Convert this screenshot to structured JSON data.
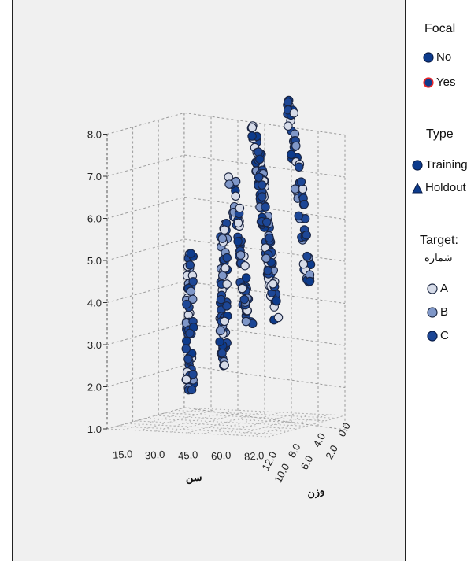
{
  "chart_data": {
    "type": "scatter",
    "title": "",
    "xlabel": "سن",
    "ylabel": "ق",
    "zlabel": "وزن",
    "x_ticks": [
      "15.0",
      "30.0",
      "45.0",
      "60.0",
      "82.0"
    ],
    "y_ticks": [
      "1.0",
      "2.0",
      "3.0",
      "4.0",
      "5.0",
      "6.0",
      "7.0",
      "8.0"
    ],
    "z_ticks": [
      "12.0",
      "10.0",
      "8.0",
      "6.0",
      "4.0",
      "2.0",
      "0.0"
    ],
    "ylim": [
      1.0,
      8.0
    ],
    "grid": true,
    "legend_placement": "right",
    "clusters": [
      {
        "age": 45,
        "weight": 12,
        "height_min": 1.9,
        "height_max": 5.2
      },
      {
        "age": 60,
        "weight": 10,
        "height_min": 2.5,
        "height_max": 5.9
      },
      {
        "age": 60,
        "weight": 8,
        "height_min": 3.3,
        "height_max": 6.8
      },
      {
        "age": 82,
        "weight": 6,
        "height_min": 3.2,
        "height_max": 7.9
      },
      {
        "age": 82,
        "weight": 4,
        "height_min": 3.8,
        "height_max": 8.2
      },
      {
        "age": 82,
        "weight": 2,
        "height_min": 4.1,
        "height_max": 7.4
      }
    ]
  },
  "legend": {
    "focal": {
      "title": "Focal",
      "items": [
        {
          "label": "No",
          "color": "#0d3b8c",
          "stroke": "#0a1d47"
        },
        {
          "label": "Yes",
          "color": "#0d3b8c",
          "stroke": "#e8262a"
        }
      ]
    },
    "type": {
      "title": "Type",
      "items": [
        {
          "label": "Training",
          "shape": "circle"
        },
        {
          "label": "Holdout",
          "shape": "triangle"
        }
      ]
    },
    "target": {
      "title": "Target:",
      "subtitle": "شماره",
      "items": [
        {
          "label": "A",
          "color": "#d6dbe8"
        },
        {
          "label": "B",
          "color": "#7f97c8"
        },
        {
          "label": "C",
          "color": "#1d4796"
        }
      ]
    }
  }
}
